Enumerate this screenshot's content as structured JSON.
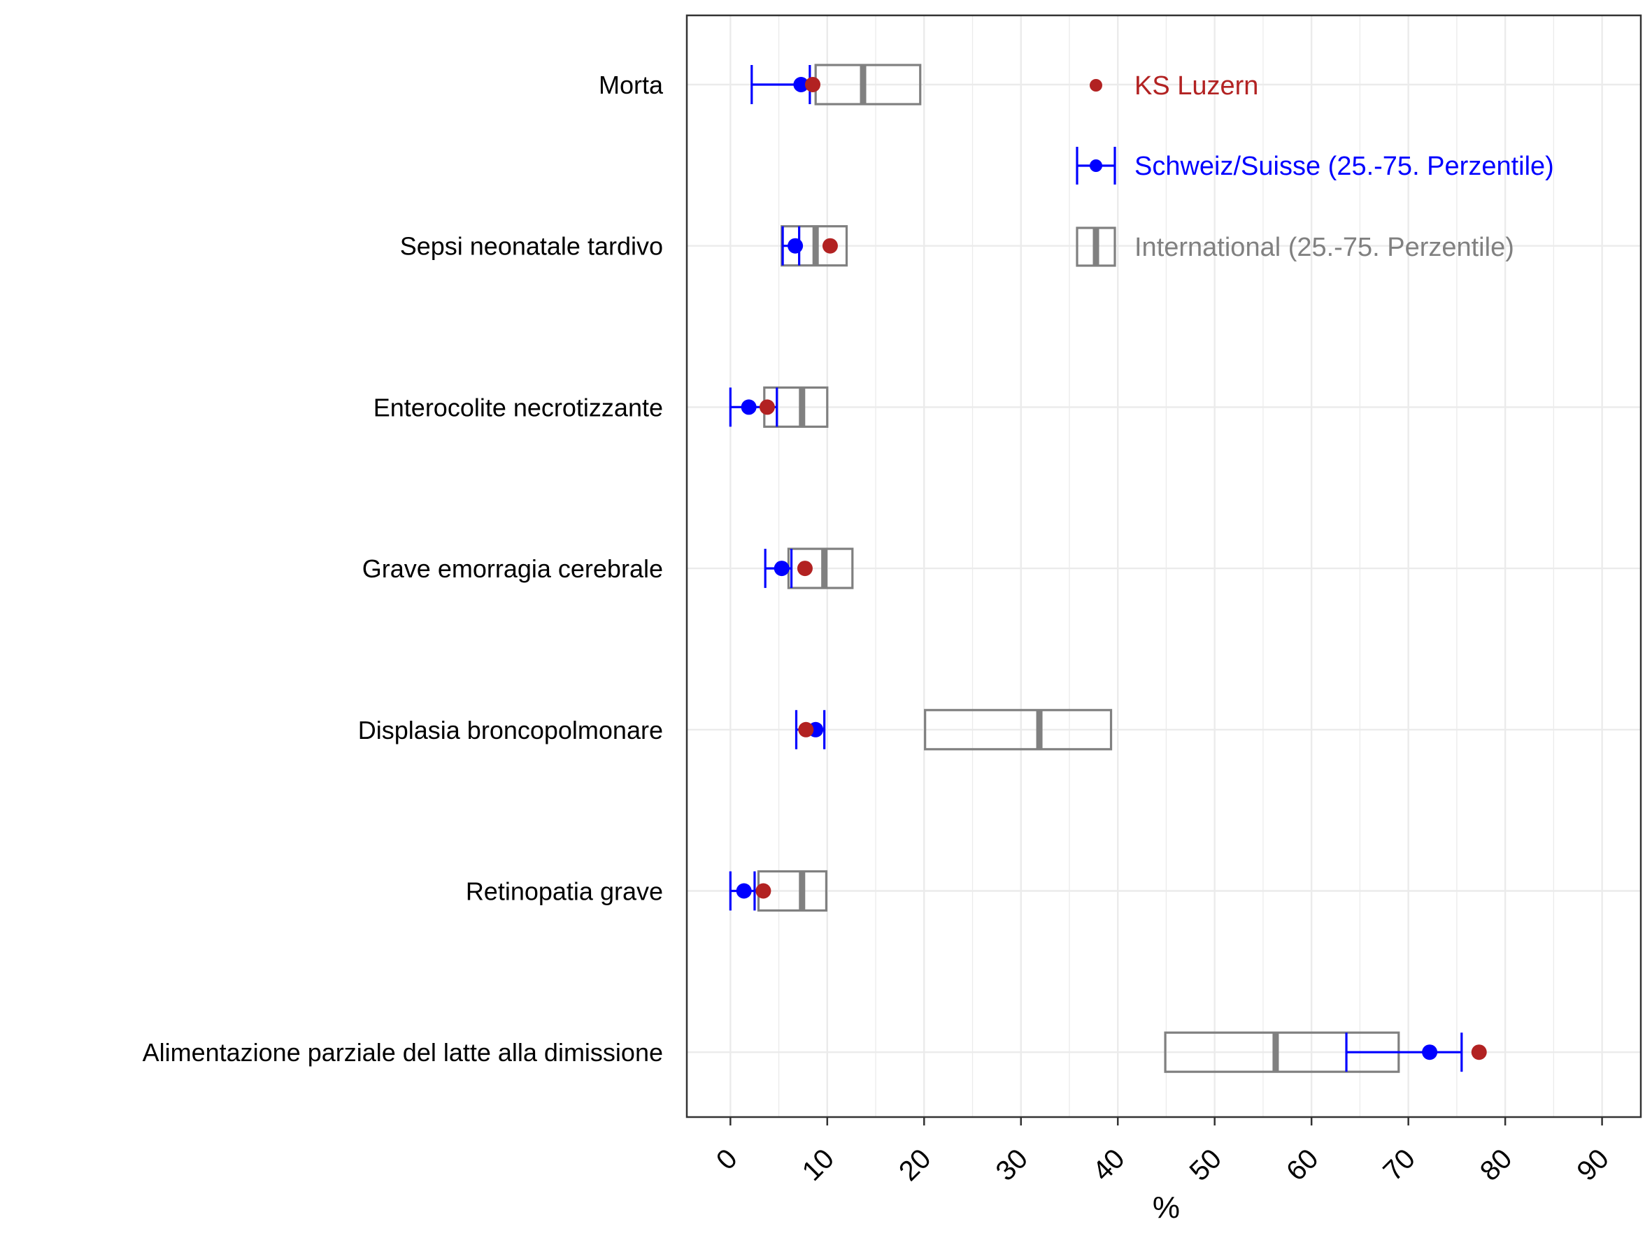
{
  "chart_data": {
    "type": "box-dot",
    "xlabel": "%",
    "xlim": [
      -4.5,
      94
    ],
    "xticks": [
      0,
      10,
      20,
      30,
      40,
      50,
      60,
      70,
      80,
      90
    ],
    "xtick_labels": [
      "0",
      "10",
      "20",
      "30",
      "40",
      "50",
      "60",
      "70",
      "80",
      "90"
    ],
    "grid": true,
    "legend_position": "top-right inside",
    "categories": [
      "Morta",
      "Sepsi neonatale tardivo",
      "Enterocolite necrotizzante",
      "Grave emorragia cerebrale",
      "Displasia broncopolmonare",
      "Retinopatia grave",
      "Alimentazione parziale del latte alla dimissione"
    ],
    "series": [
      {
        "name": "KS Luzern",
        "color": "#B22222",
        "kind": "point",
        "values": [
          8.5,
          10.3,
          3.8,
          7.7,
          7.8,
          3.4,
          77.3
        ]
      },
      {
        "name": "Schweiz/Suisse (25.-75. Perzentile)",
        "color": "#0000FF",
        "kind": "point-range",
        "median": [
          7.3,
          6.7,
          1.9,
          5.3,
          8.8,
          1.4,
          72.2
        ],
        "p25": [
          2.2,
          5.4,
          0.0,
          3.6,
          6.8,
          0.0,
          63.6
        ],
        "p75": [
          8.2,
          7.1,
          4.8,
          6.3,
          9.7,
          2.5,
          75.5
        ]
      },
      {
        "name": "International (25.-75. Perzentile)",
        "color": "#808080",
        "kind": "box",
        "median": [
          13.7,
          8.8,
          7.4,
          9.7,
          31.9,
          7.4,
          56.3
        ],
        "p25": [
          8.8,
          5.3,
          3.5,
          6.0,
          20.1,
          2.9,
          44.9
        ],
        "p75": [
          19.6,
          12.0,
          10.0,
          12.6,
          39.3,
          9.9,
          69.0
        ]
      }
    ]
  }
}
